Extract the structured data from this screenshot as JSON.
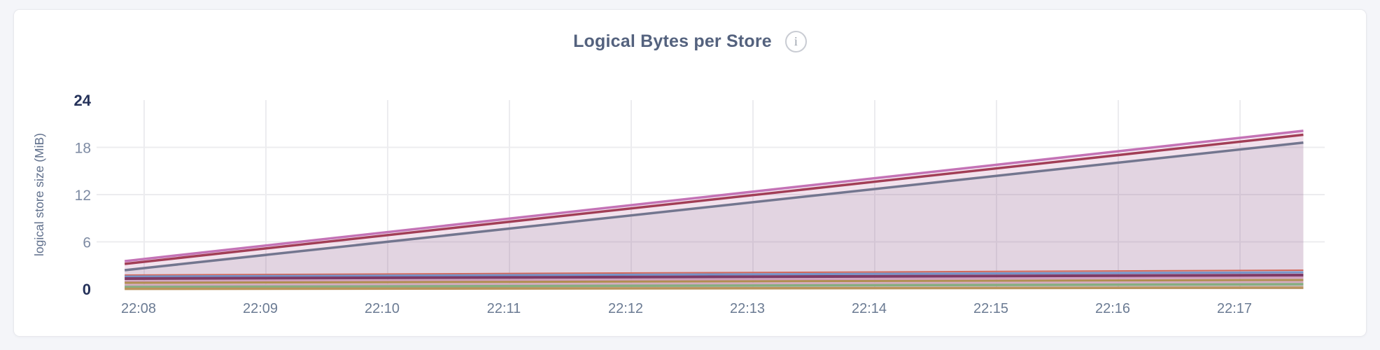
{
  "header": {
    "title": "Logical Bytes per Store",
    "info_glyph": "i"
  },
  "colors": {
    "page_background": "#f4f5f9",
    "card_background": "#ffffff",
    "card_border": "#e7e8ed",
    "title_text": "#54627e",
    "info_icon": "#c9ccd3",
    "gridline": "#ececef",
    "x_tick_label": "#6b7b93",
    "y_tick_label": "#7e8ba3",
    "y_tick_label_emphasized": "#25325a",
    "axis_title": "#60708c"
  },
  "chart_data": {
    "type": "area",
    "title": "Logical Bytes per Store",
    "xlabel": "",
    "ylabel": "logical store size (MiB)",
    "ylim": [
      0,
      24
    ],
    "yticks": [
      {
        "value": 24,
        "label": "24",
        "emphasized": true,
        "gridline": false
      },
      {
        "value": 18,
        "label": "18",
        "emphasized": false,
        "gridline": true
      },
      {
        "value": 12,
        "label": "12",
        "emphasized": false,
        "gridline": true
      },
      {
        "value": 6,
        "label": "6",
        "emphasized": false,
        "gridline": true
      },
      {
        "value": 0,
        "label": "0",
        "emphasized": true,
        "gridline": false
      }
    ],
    "xticks": [
      {
        "t_min": 8,
        "label": "22:08"
      },
      {
        "t_min": 9,
        "label": "22:09"
      },
      {
        "t_min": 10,
        "label": "22:10"
      },
      {
        "t_min": 11,
        "label": "22:11"
      },
      {
        "t_min": 12,
        "label": "22:12"
      },
      {
        "t_min": 13,
        "label": "22:13"
      },
      {
        "t_min": 14,
        "label": "22:14"
      },
      {
        "t_min": 15,
        "label": "22:15"
      },
      {
        "t_min": 16,
        "label": "22:16"
      },
      {
        "t_min": 17,
        "label": "22:17"
      }
    ],
    "x_unit": "minutes after 22:00",
    "y_unit": "MiB",
    "grid": true,
    "legend": "none",
    "series": [
      {
        "id": "series-1",
        "color": "#c473b6",
        "stroke_width": 3.5,
        "fill_opacity": 0.15,
        "points": [
          {
            "t_min": 7.84,
            "mib": 3.55
          },
          {
            "t_min": 17.52,
            "mib": 20.1
          }
        ]
      },
      {
        "id": "series-2",
        "color": "#a23e56",
        "stroke_width": 3.5,
        "fill_opacity": 0.04,
        "points": [
          {
            "t_min": 7.84,
            "mib": 3.2
          },
          {
            "t_min": 17.52,
            "mib": 19.6
          }
        ]
      },
      {
        "id": "series-3",
        "color": "#73768f",
        "stroke_width": 3.5,
        "fill_opacity": 0.12,
        "points": [
          {
            "t_min": 7.84,
            "mib": 2.4
          },
          {
            "t_min": 17.52,
            "mib": 18.6
          }
        ]
      },
      {
        "id": "series-4",
        "color": "#d2685a",
        "stroke_width": 2,
        "fill_opacity": 0.04,
        "points": [
          {
            "t_min": 7.84,
            "mib": 1.78
          },
          {
            "t_min": 17.52,
            "mib": 2.4
          }
        ]
      },
      {
        "id": "series-5",
        "color": "#7693c8",
        "stroke_width": 3,
        "fill_opacity": 0.04,
        "points": [
          {
            "t_min": 7.84,
            "mib": 1.6
          },
          {
            "t_min": 17.52,
            "mib": 2.13
          }
        ]
      },
      {
        "id": "series-6",
        "color": "#7e3a66",
        "stroke_width": 4,
        "fill_opacity": 0.05,
        "points": [
          {
            "t_min": 7.84,
            "mib": 1.33
          },
          {
            "t_min": 17.52,
            "mib": 1.78
          }
        ]
      },
      {
        "id": "series-7",
        "color": "#cf9dbd",
        "stroke_width": 2.5,
        "fill_opacity": 0.05,
        "points": [
          {
            "t_min": 7.84,
            "mib": 0.98
          },
          {
            "t_min": 17.52,
            "mib": 1.47
          }
        ]
      },
      {
        "id": "series-8",
        "color": "#b18e51",
        "stroke_width": 3,
        "fill_opacity": 0.05,
        "points": [
          {
            "t_min": 7.84,
            "mib": 0.8
          },
          {
            "t_min": 17.52,
            "mib": 1.16
          }
        ]
      },
      {
        "id": "series-9",
        "color": "#d4aabf",
        "stroke_width": 2.5,
        "fill_opacity": 0.05,
        "points": [
          {
            "t_min": 7.84,
            "mib": 0.49
          },
          {
            "t_min": 17.52,
            "mib": 0.9
          }
        ]
      },
      {
        "id": "series-10",
        "color": "#86ae80",
        "stroke_width": 3.5,
        "fill_opacity": 0.05,
        "points": [
          {
            "t_min": 7.84,
            "mib": 0.27
          },
          {
            "t_min": 17.52,
            "mib": 0.62
          }
        ]
      },
      {
        "id": "series-11",
        "color": "#b9945c",
        "stroke_width": 3.5,
        "fill_opacity": 0.05,
        "points": [
          {
            "t_min": 7.84,
            "mib": 0.03
          },
          {
            "t_min": 17.52,
            "mib": 0.18
          }
        ]
      }
    ]
  }
}
